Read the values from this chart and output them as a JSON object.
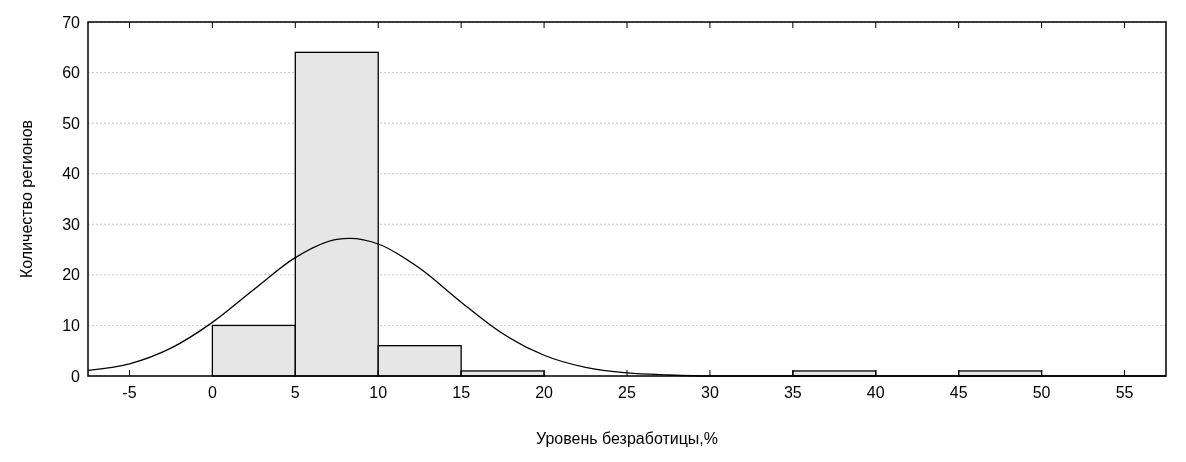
{
  "chart_data": {
    "type": "histogram",
    "xlabel": "Уровень безработицы,%",
    "ylabel": "Количество регионов",
    "bins": [
      0,
      5,
      10,
      15,
      20,
      25,
      30,
      35,
      40,
      45,
      50
    ],
    "values": [
      10,
      64,
      6,
      1,
      0,
      0,
      0,
      1,
      0,
      1
    ],
    "color": "#e6e6e6",
    "series": [
      {
        "type": "line",
        "color": "#000000",
        "x": [
          -7.5,
          -5,
          -2.5,
          0,
          2.5,
          5,
          7.5,
          8.3,
          10,
          12.5,
          15,
          17.5,
          20,
          22.5,
          25,
          27.5,
          30,
          35,
          57.5
        ],
        "values": [
          1.1,
          2.4,
          5.5,
          10.6,
          17.1,
          23.4,
          27.0,
          27.2,
          26.1,
          21.3,
          14.6,
          8.4,
          4.1,
          1.7,
          0.6,
          0.2,
          0,
          0,
          0
        ]
      }
    ],
    "xlim": [
      -7.5,
      57.5
    ],
    "xticks": [
      -5,
      0,
      5,
      10,
      15,
      20,
      25,
      30,
      35,
      40,
      45,
      50,
      55
    ],
    "ylim": [
      0,
      70
    ],
    "yticks": [
      0,
      10,
      20,
      30,
      40,
      50,
      60,
      70
    ],
    "grid": "y",
    "marker": "none",
    "line_style": "solid"
  }
}
